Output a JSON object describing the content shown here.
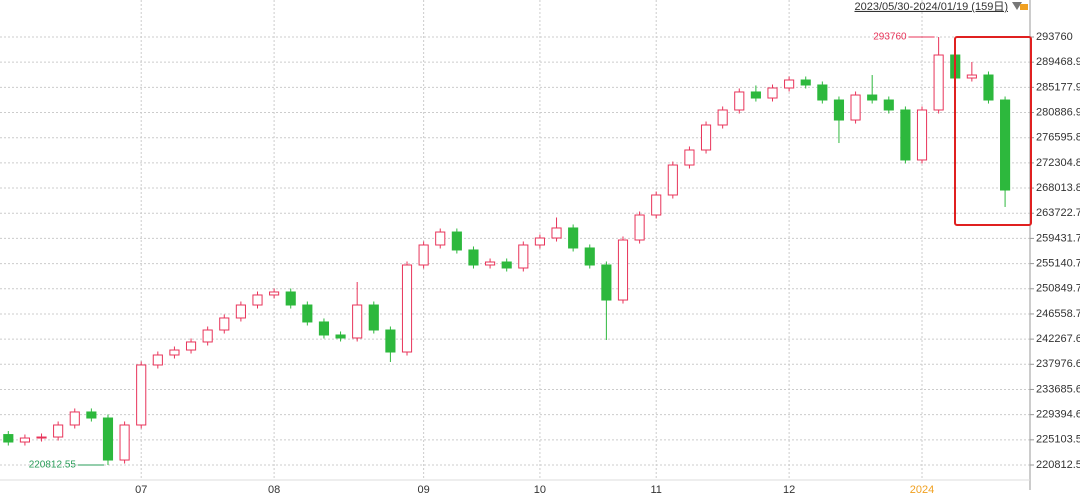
{
  "chart_data": {
    "type": "candlestick",
    "range_label": "2023/05/30-2024/01/19 (159日)",
    "up_color": "#e8345a",
    "down_color": "#2db83d",
    "ylim": [
      216551,
      300066
    ],
    "yticks": [
      293760,
      289468.9,
      285177.9,
      280886.9,
      276595.8,
      272304.8,
      268013.8,
      263722.7,
      259431.7,
      255140.7,
      250849.7,
      246558.7,
      242267.6,
      237976.6,
      233685.6,
      229394.6,
      225103.5,
      220812.5
    ],
    "xlim": [
      -0.5,
      61.5
    ],
    "xticks": [
      {
        "value": 8,
        "label": "07"
      },
      {
        "value": 16,
        "label": "08"
      },
      {
        "value": 25,
        "label": "09"
      },
      {
        "value": 32,
        "label": "10"
      },
      {
        "value": 39,
        "label": "11"
      },
      {
        "value": 47,
        "label": "12"
      },
      {
        "value": 55,
        "label": "2024"
      }
    ],
    "grid": true,
    "max_label": "293760",
    "min_label": "220812.55",
    "ohlc": [
      [
        226000,
        226600,
        224130,
        224730
      ],
      [
        224730,
        226010,
        224130,
        225410
      ],
      [
        225410,
        226180,
        224810,
        225580
      ],
      [
        225580,
        228230,
        224980,
        227630
      ],
      [
        227630,
        230450,
        227030,
        229850
      ],
      [
        229850,
        230450,
        228220,
        228820
      ],
      [
        228820,
        229420,
        220812.55,
        221660
      ],
      [
        221660,
        228230,
        221060,
        227630
      ],
      [
        227630,
        238460,
        227030,
        237860
      ],
      [
        237860,
        240160,
        237260,
        239560
      ],
      [
        239560,
        241010,
        238960,
        240410
      ],
      [
        240410,
        242380,
        239810,
        241780
      ],
      [
        241780,
        244420,
        241180,
        243820
      ],
      [
        243820,
        246470,
        243220,
        245870
      ],
      [
        245870,
        248680,
        245270,
        248080
      ],
      [
        248080,
        250390,
        247480,
        249790
      ],
      [
        249790,
        250900,
        249190,
        250300
      ],
      [
        250300,
        250900,
        247480,
        248080
      ],
      [
        248080,
        248680,
        244590,
        245190
      ],
      [
        245190,
        245790,
        242370,
        242970
      ],
      [
        242970,
        243570,
        241860,
        242460
      ],
      [
        242460,
        252000,
        241860,
        248080
      ],
      [
        248080,
        248680,
        243220,
        243820
      ],
      [
        243820,
        244420,
        238370,
        240070
      ],
      [
        240070,
        255500,
        239470,
        254900
      ],
      [
        254900,
        258910,
        254300,
        258310
      ],
      [
        258310,
        261120,
        257710,
        260520
      ],
      [
        260520,
        261120,
        256860,
        257460
      ],
      [
        257460,
        258060,
        254300,
        254900
      ],
      [
        254900,
        256010,
        254300,
        255410
      ],
      [
        255410,
        256010,
        253790,
        254390
      ],
      [
        254390,
        258910,
        253790,
        258310
      ],
      [
        258310,
        260100,
        257710,
        259500
      ],
      [
        259500,
        263000,
        258900,
        261210
      ],
      [
        261210,
        261810,
        257200,
        257800
      ],
      [
        257800,
        258400,
        254300,
        254900
      ],
      [
        254900,
        255500,
        242120,
        248930
      ],
      [
        248930,
        259760,
        248330,
        259160
      ],
      [
        259160,
        264020,
        258560,
        263420
      ],
      [
        263420,
        267430,
        262820,
        266830
      ],
      [
        266830,
        272540,
        266230,
        271940
      ],
      [
        271940,
        275100,
        271340,
        274500
      ],
      [
        274500,
        279360,
        273900,
        278760
      ],
      [
        278760,
        281920,
        278160,
        281320
      ],
      [
        281320,
        284990,
        280720,
        284390
      ],
      [
        284390,
        285500,
        282760,
        283360
      ],
      [
        283360,
        285670,
        282760,
        285070
      ],
      [
        285070,
        287030,
        284470,
        286430
      ],
      [
        286430,
        287030,
        284980,
        285580
      ],
      [
        285580,
        286180,
        282420,
        283020
      ],
      [
        283020,
        283620,
        275690,
        279610
      ],
      [
        279610,
        284470,
        279010,
        283870
      ],
      [
        283870,
        287280,
        282420,
        283020
      ],
      [
        283020,
        283620,
        280720,
        281320
      ],
      [
        281320,
        281920,
        272200,
        272800
      ],
      [
        272800,
        281920,
        272200,
        281320
      ],
      [
        281320,
        293760,
        280720,
        290690
      ],
      [
        290690,
        291290,
        286170,
        286770
      ],
      [
        286770,
        289500,
        286170,
        287280
      ],
      [
        287280,
        287880,
        282420,
        283020
      ],
      [
        283020,
        283620,
        264790,
        267680
      ]
    ]
  }
}
